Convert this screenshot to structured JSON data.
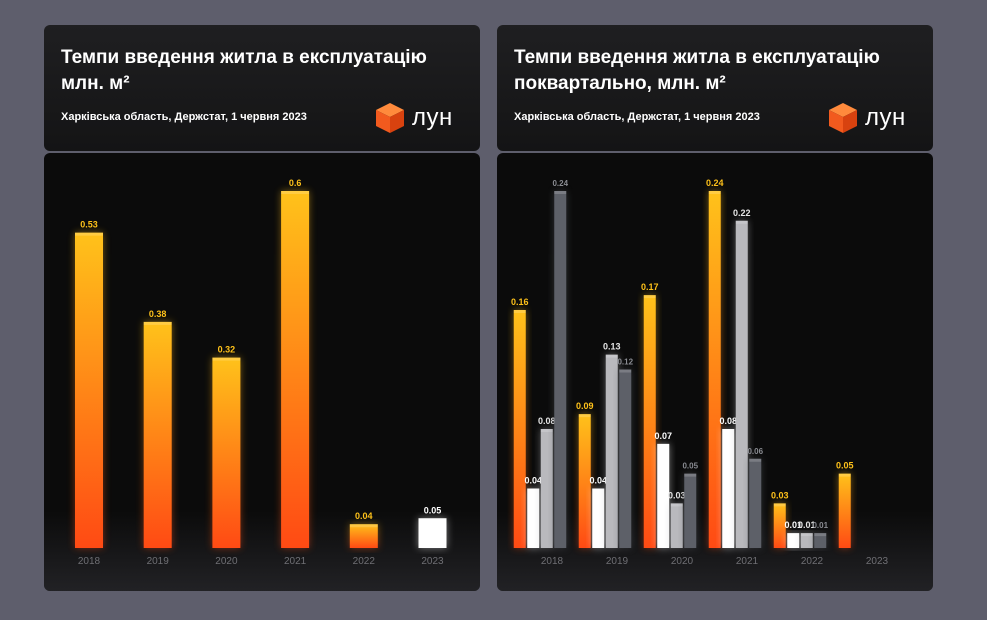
{
  "colors": {
    "bar_top": "#ffc21a",
    "bar_bottom": "#ff4a14",
    "white_bar": "#ffffff",
    "light_gray_bar": "#b9b9bd",
    "dark_gray_bar": "#5d6068",
    "logo_orange": "#f25a1e"
  },
  "left": {
    "title": "Темпи введення житла в експлуатацію\nмлн. м²",
    "subtitle": "Харківська область, Держстат, 1 червня 2023",
    "logo_text": "лун",
    "logo_icon": "lun-cube-icon"
  },
  "right": {
    "title": "Темпи введення житла в експлуатацію\nпоквартально, млн. м²",
    "subtitle": "Харківська область, Держстат, 1 червня 2023",
    "logo_text": "лун",
    "logo_icon": "lun-cube-icon"
  },
  "chart_data": [
    {
      "type": "bar",
      "title": "Темпи введення житла в експлуатацію млн. м²",
      "categories": [
        "2018",
        "2019",
        "2020",
        "2021",
        "2022",
        "2023"
      ],
      "values": [
        0.53,
        0.38,
        0.32,
        0.6,
        0.04,
        0.05
      ],
      "value_labels": [
        "0.53",
        "0.38",
        "0.32",
        "0.6",
        "0.04",
        "0.05"
      ],
      "bar_styles": [
        "orange",
        "orange",
        "orange",
        "orange",
        "orange",
        "white"
      ],
      "ylim": [
        0,
        0.6
      ]
    },
    {
      "type": "bar",
      "title": "Темпи введення житла в експлуатацію поквартально, млн. м²",
      "categories": [
        "2018",
        "2019",
        "2020",
        "2021",
        "2022",
        "2023"
      ],
      "series": [
        {
          "style": "orange",
          "values": [
            0.16,
            0.09,
            0.17,
            0.24,
            0.03,
            0.05
          ],
          "labels": [
            "0.16",
            "0.09",
            "0.17",
            "0.24",
            "0.03",
            "0.05"
          ]
        },
        {
          "style": "white",
          "values": [
            0.04,
            0.04,
            0.07,
            0.08,
            0.01,
            null
          ],
          "labels": [
            "0.04",
            "0.04",
            "0.07",
            "0.08",
            "0.01",
            ""
          ]
        },
        {
          "style": "light_gray",
          "values": [
            0.08,
            0.13,
            0.03,
            0.22,
            0.01,
            null
          ],
          "labels": [
            "0.08",
            "0.13",
            "0.03",
            "0.22",
            "0.01",
            ""
          ]
        },
        {
          "style": "dark_gray",
          "values": [
            0.24,
            0.12,
            0.05,
            0.06,
            0.01,
            null
          ],
          "labels": [
            "0.24",
            "0.12",
            "0.05",
            "0.06",
            "0.01",
            ""
          ]
        }
      ],
      "ylim": [
        0,
        0.24
      ]
    }
  ]
}
